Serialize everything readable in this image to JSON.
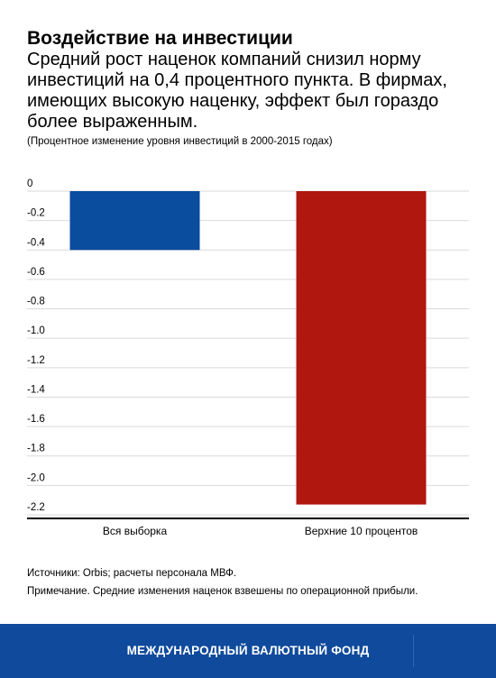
{
  "header": {
    "title": "Воздействие на инвестиции",
    "subtitle": "Средний рост наценок компаний снизил норму инвестиций на 0,4 процентного пункта. В фирмах, имеющих высокую наценку, эффект был гораздо более выраженным.",
    "note": "(Процентное изменение уровня инвестиций в 2000-2015 годах)"
  },
  "chart_data": {
    "type": "bar",
    "categories": [
      "Вся выборка",
      "Верхние 10 процентов"
    ],
    "values": [
      -0.4,
      -2.13
    ],
    "colors": [
      "#0a4c9e",
      "#b0170f"
    ],
    "ylim": [
      -2.2,
      0
    ],
    "yticks": [
      0,
      -0.2,
      -0.4,
      -0.6,
      -0.8,
      -1.0,
      -1.2,
      -1.4,
      -1.6,
      -1.8,
      -2.0,
      -2.2
    ],
    "ytick_labels": [
      "0",
      "-0.2",
      "-0.4",
      "-0.6",
      "-0.8",
      "-1.0",
      "-1.2",
      "-1.4",
      "-1.6",
      "-1.8",
      "-2.0",
      "-2.2"
    ],
    "grid": true
  },
  "footnotes": {
    "sources": "Источники: Orbis; расчеты персонала МВФ.",
    "remark": "Примечание. Средние изменения наценок взвешены по операционной прибыли."
  },
  "footer": {
    "label": "МЕЖДУНАРОДНЫЙ ВАЛЮТНЫЙ ФОНД",
    "background": "#0f4a9c"
  }
}
